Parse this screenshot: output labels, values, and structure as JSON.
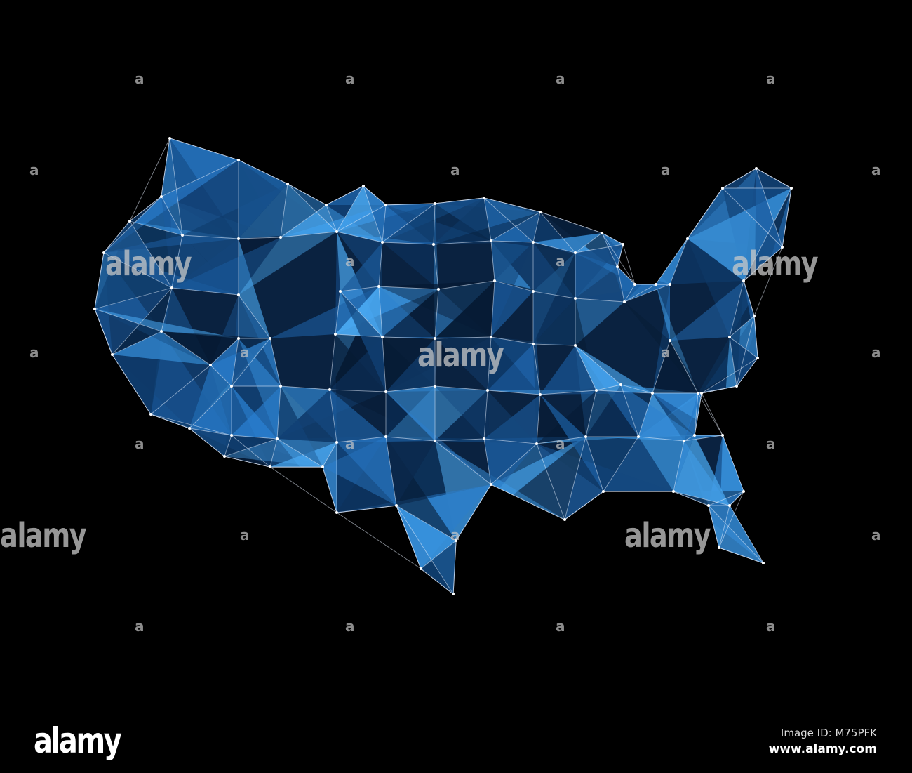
{
  "image": {
    "subject": "low-poly network map of the United States",
    "background_color": "#000000",
    "mesh_fill_color": "#2a7fd0",
    "mesh_line_color": "#e8f0ff"
  },
  "watermark": {
    "word": "alamy",
    "small_mark": "a"
  },
  "footer": {
    "logo": "alamy",
    "image_id": "Image ID: M75PFK",
    "url": "www.alamy.com"
  }
}
